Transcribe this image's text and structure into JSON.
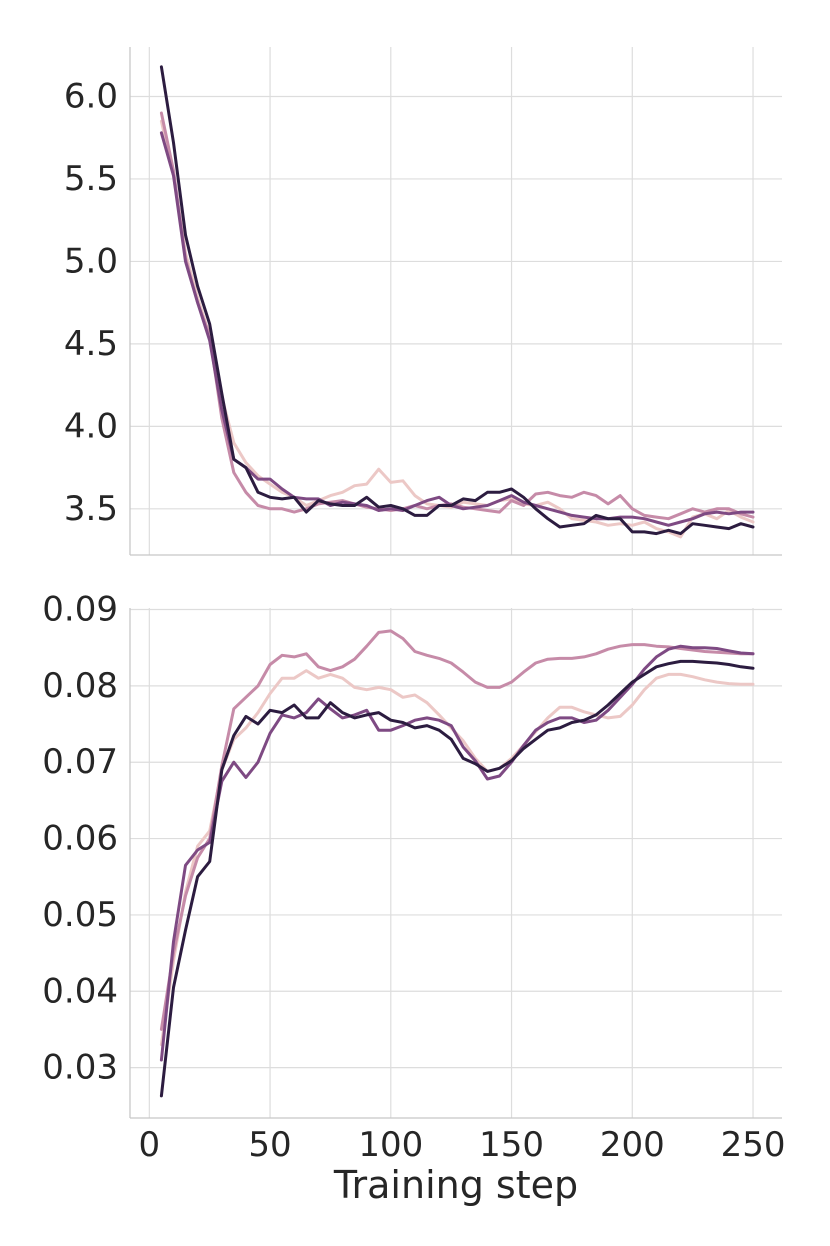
{
  "chart_data": [
    {
      "type": "line",
      "xlabel": "",
      "ylabel": "",
      "xlim": [
        -8,
        262
      ],
      "ylim": [
        3.22,
        6.3
      ],
      "grid": true,
      "xticks": [
        0,
        50,
        100,
        150,
        200,
        250
      ],
      "xtick_labels": [
        "0",
        "50",
        "100",
        "150",
        "200",
        "250"
      ],
      "yticks": [
        3.5,
        4.0,
        4.5,
        5.0,
        5.5,
        6.0
      ],
      "ytick_labels": [
        "3.5",
        "4.0",
        "4.5",
        "5.0",
        "5.5",
        "6.0"
      ],
      "x": [
        5,
        10,
        15,
        20,
        25,
        30,
        35,
        40,
        45,
        50,
        55,
        60,
        65,
        70,
        75,
        80,
        85,
        90,
        95,
        100,
        105,
        110,
        115,
        120,
        125,
        130,
        135,
        140,
        145,
        150,
        155,
        160,
        165,
        170,
        175,
        180,
        185,
        190,
        195,
        200,
        205,
        210,
        215,
        220,
        225,
        230,
        235,
        240,
        245,
        250
      ],
      "series": [
        {
          "color": "#ecc8c6",
          "values": [
            5.85,
            5.52,
            5.05,
            4.78,
            4.55,
            4.18,
            3.9,
            3.78,
            3.7,
            3.65,
            3.6,
            3.57,
            3.52,
            3.55,
            3.58,
            3.6,
            3.64,
            3.65,
            3.74,
            3.66,
            3.67,
            3.58,
            3.53,
            3.52,
            3.51,
            3.54,
            3.53,
            3.52,
            3.55,
            3.56,
            3.53,
            3.52,
            3.54,
            3.5,
            3.44,
            3.43,
            3.42,
            3.4,
            3.41,
            3.4,
            3.42,
            3.38,
            3.36,
            3.33,
            3.45,
            3.47,
            3.44,
            3.49,
            3.45,
            3.42
          ]
        },
        {
          "color": "#c68ba8",
          "values": [
            5.9,
            5.55,
            5.02,
            4.75,
            4.55,
            4.05,
            3.72,
            3.6,
            3.52,
            3.5,
            3.5,
            3.48,
            3.5,
            3.53,
            3.54,
            3.55,
            3.53,
            3.51,
            3.5,
            3.49,
            3.5,
            3.52,
            3.5,
            3.52,
            3.53,
            3.51,
            3.5,
            3.49,
            3.48,
            3.55,
            3.52,
            3.59,
            3.6,
            3.58,
            3.57,
            3.6,
            3.58,
            3.53,
            3.58,
            3.5,
            3.46,
            3.45,
            3.44,
            3.47,
            3.5,
            3.48,
            3.5,
            3.5,
            3.47,
            3.45
          ]
        },
        {
          "color": "#7e4a83",
          "values": [
            5.78,
            5.52,
            5.0,
            4.75,
            4.52,
            4.1,
            3.8,
            3.75,
            3.68,
            3.68,
            3.62,
            3.57,
            3.56,
            3.56,
            3.52,
            3.54,
            3.53,
            3.52,
            3.49,
            3.5,
            3.49,
            3.52,
            3.55,
            3.57,
            3.52,
            3.5,
            3.51,
            3.52,
            3.55,
            3.58,
            3.54,
            3.52,
            3.5,
            3.48,
            3.46,
            3.45,
            3.44,
            3.44,
            3.45,
            3.45,
            3.44,
            3.42,
            3.4,
            3.42,
            3.44,
            3.47,
            3.48,
            3.47,
            3.48,
            3.48
          ]
        },
        {
          "color": "#2c1c40",
          "values": [
            6.18,
            5.72,
            5.16,
            4.85,
            4.62,
            4.2,
            3.8,
            3.75,
            3.6,
            3.57,
            3.56,
            3.57,
            3.48,
            3.55,
            3.53,
            3.52,
            3.52,
            3.57,
            3.51,
            3.52,
            3.5,
            3.46,
            3.46,
            3.52,
            3.52,
            3.56,
            3.55,
            3.6,
            3.6,
            3.62,
            3.57,
            3.5,
            3.44,
            3.39,
            3.4,
            3.41,
            3.46,
            3.44,
            3.44,
            3.36,
            3.36,
            3.35,
            3.37,
            3.35,
            3.41,
            3.4,
            3.39,
            3.38,
            3.41,
            3.39
          ]
        }
      ]
    },
    {
      "type": "line",
      "xlabel": "Training step",
      "ylabel": "",
      "xlim": [
        -8,
        262
      ],
      "ylim": [
        0.0234,
        0.0902
      ],
      "grid": true,
      "xticks": [
        0,
        50,
        100,
        150,
        200,
        250
      ],
      "xtick_labels": [
        "0",
        "50",
        "100",
        "150",
        "200",
        "250"
      ],
      "yticks": [
        0.03,
        0.04,
        0.05,
        0.06,
        0.07,
        0.08,
        0.09
      ],
      "ytick_labels": [
        "0.03",
        "0.04",
        "0.05",
        "0.06",
        "0.07",
        "0.08",
        "0.09"
      ],
      "x": [
        5,
        10,
        15,
        20,
        25,
        30,
        35,
        40,
        45,
        50,
        55,
        60,
        65,
        70,
        75,
        80,
        85,
        90,
        95,
        100,
        105,
        110,
        115,
        120,
        125,
        130,
        135,
        140,
        145,
        150,
        155,
        160,
        165,
        170,
        175,
        180,
        185,
        190,
        195,
        200,
        205,
        210,
        215,
        220,
        225,
        230,
        235,
        240,
        245,
        250
      ],
      "series": [
        {
          "color": "#ecc8c6",
          "values": [
            0.033,
            0.044,
            0.053,
            0.059,
            0.061,
            0.069,
            0.073,
            0.0745,
            0.0765,
            0.079,
            0.081,
            0.081,
            0.082,
            0.081,
            0.0815,
            0.081,
            0.0798,
            0.0795,
            0.0798,
            0.0795,
            0.0785,
            0.0788,
            0.0778,
            0.0762,
            0.0745,
            0.0728,
            0.0705,
            0.0688,
            0.0692,
            0.0705,
            0.0722,
            0.074,
            0.0758,
            0.0772,
            0.0772,
            0.0766,
            0.0762,
            0.0758,
            0.076,
            0.0775,
            0.0795,
            0.081,
            0.0815,
            0.0815,
            0.0812,
            0.0808,
            0.0805,
            0.0803,
            0.0802,
            0.0802
          ]
        },
        {
          "color": "#c68ba8",
          "values": [
            0.035,
            0.045,
            0.0525,
            0.0575,
            0.06,
            0.0695,
            0.077,
            0.0785,
            0.08,
            0.0828,
            0.084,
            0.0838,
            0.0842,
            0.0825,
            0.082,
            0.0825,
            0.0835,
            0.0852,
            0.087,
            0.0872,
            0.0862,
            0.0845,
            0.084,
            0.0836,
            0.083,
            0.0818,
            0.0805,
            0.0798,
            0.0798,
            0.0805,
            0.0818,
            0.083,
            0.0835,
            0.0836,
            0.0836,
            0.0838,
            0.0842,
            0.0848,
            0.0852,
            0.0854,
            0.0854,
            0.0852,
            0.0851,
            0.0849,
            0.0847,
            0.0845,
            0.0844,
            0.0843,
            0.0842,
            0.0842
          ]
        },
        {
          "color": "#7e4a83",
          "values": [
            0.031,
            0.0465,
            0.0565,
            0.0585,
            0.0595,
            0.0675,
            0.07,
            0.068,
            0.07,
            0.0738,
            0.0762,
            0.0758,
            0.0765,
            0.0783,
            0.077,
            0.0758,
            0.0762,
            0.0768,
            0.0742,
            0.0742,
            0.0748,
            0.0755,
            0.0758,
            0.0755,
            0.0748,
            0.072,
            0.0702,
            0.0678,
            0.0682,
            0.07,
            0.0722,
            0.0742,
            0.0752,
            0.0758,
            0.0758,
            0.0752,
            0.0755,
            0.0768,
            0.0785,
            0.0802,
            0.0822,
            0.0838,
            0.0848,
            0.0852,
            0.085,
            0.085,
            0.0849,
            0.0846,
            0.0843,
            0.0842
          ]
        },
        {
          "color": "#2c1c40",
          "values": [
            0.0263,
            0.0405,
            0.048,
            0.055,
            0.057,
            0.069,
            0.0735,
            0.076,
            0.075,
            0.0768,
            0.0765,
            0.0775,
            0.0758,
            0.0758,
            0.0778,
            0.0765,
            0.0758,
            0.0762,
            0.0765,
            0.0755,
            0.0752,
            0.0745,
            0.0748,
            0.0742,
            0.073,
            0.0705,
            0.0698,
            0.0688,
            0.0692,
            0.0702,
            0.0718,
            0.073,
            0.0742,
            0.0745,
            0.0752,
            0.0755,
            0.0762,
            0.0775,
            0.079,
            0.0805,
            0.0815,
            0.0825,
            0.0829,
            0.0832,
            0.0832,
            0.0831,
            0.083,
            0.0828,
            0.0825,
            0.0823
          ]
        }
      ]
    }
  ]
}
